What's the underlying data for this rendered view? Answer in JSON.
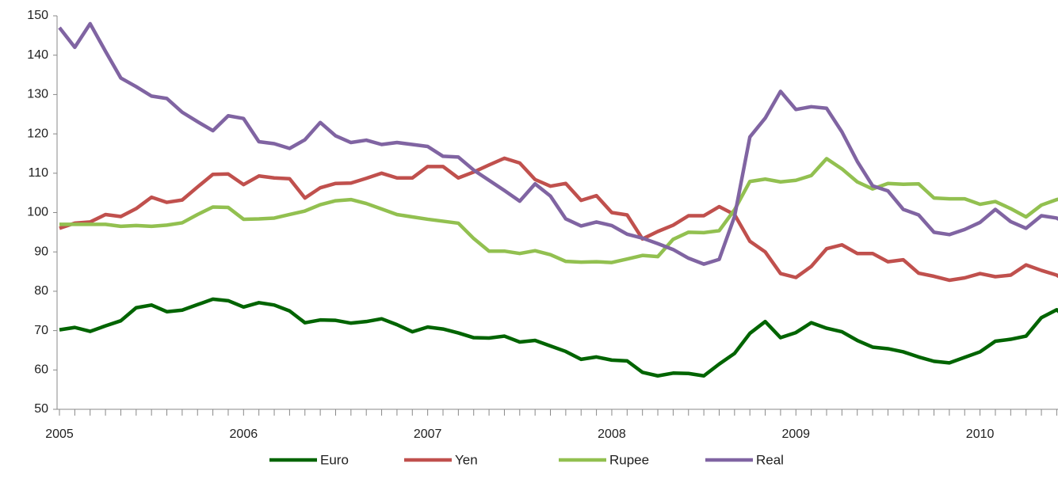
{
  "chart_data": {
    "type": "line",
    "categories": [
      "2005",
      null,
      null,
      null,
      null,
      null,
      null,
      null,
      null,
      null,
      null,
      null,
      "2006",
      null,
      null,
      null,
      null,
      null,
      null,
      null,
      null,
      null,
      null,
      null,
      "2007",
      null,
      null,
      null,
      null,
      null,
      null,
      null,
      null,
      null,
      null,
      null,
      "2008",
      null,
      null,
      null,
      null,
      null,
      null,
      null,
      null,
      null,
      null,
      null,
      "2009",
      null,
      null,
      null,
      null,
      null,
      null,
      null,
      null,
      null,
      null,
      null,
      "2010",
      null,
      null,
      null,
      null,
      null,
      null
    ],
    "series": [
      {
        "name": "Euro",
        "color": "#006400",
        "values": [
          70.2,
          70.8,
          69.8,
          71.2,
          72.5,
          75.8,
          76.5,
          74.8,
          75.2,
          76.6,
          78,
          77.6,
          76,
          77.1,
          76.5,
          75,
          72,
          72.7,
          72.6,
          71.9,
          72.3,
          73,
          71.5,
          69.7,
          70.9,
          70.4,
          69.4,
          68.2,
          68.1,
          68.6,
          67.1,
          67.5,
          66.1,
          64.7,
          62.7,
          63.3,
          62.5,
          62.3,
          59.4,
          58.5,
          59.2,
          59.1,
          58.5,
          61.5,
          64.2,
          69.3,
          72.3,
          68.2,
          69.5,
          72,
          70.6,
          69.7,
          67.5,
          65.8,
          65.4,
          64.6,
          63.3,
          62.2,
          61.8,
          63.2,
          64.6,
          67.3,
          67.8,
          68.6,
          73.3,
          75.3,
          72
        ]
      },
      {
        "name": "Yen",
        "color": "#c0504d",
        "values": [
          96,
          97.3,
          97.6,
          99.5,
          99,
          101,
          103.9,
          102.6,
          103.2,
          106.5,
          109.7,
          109.8,
          107.1,
          109.3,
          108.8,
          108.6,
          103.7,
          106.3,
          107.4,
          107.5,
          108.7,
          110,
          108.8,
          108.8,
          111.7,
          111.7,
          108.8,
          110.3,
          112.1,
          113.8,
          112.6,
          108.4,
          106.7,
          107.4,
          103.1,
          104.3,
          100,
          99.4,
          93.3,
          95.2,
          96.8,
          99.2,
          99.2,
          101.5,
          99.5,
          92.7,
          90,
          84.5,
          83.5,
          86.3,
          90.8,
          91.8,
          89.6,
          89.6,
          87.5,
          88,
          84.6,
          83.8,
          82.8,
          83.4,
          84.5,
          83.7,
          84.1,
          86.7,
          85.3,
          84.1,
          81.5
        ]
      },
      {
        "name": "Rupee",
        "color": "#92c050",
        "values": [
          97,
          97,
          97,
          97,
          96.5,
          96.7,
          96.5,
          96.8,
          97.4,
          99.5,
          101.4,
          101.3,
          98.3,
          98.4,
          98.6,
          99.5,
          100.4,
          102,
          103,
          103.3,
          102.3,
          100.9,
          99.5,
          98.9,
          98.3,
          97.8,
          97.3,
          93.4,
          90.2,
          90.2,
          89.6,
          90.3,
          89.3,
          87.6,
          87.4,
          87.5,
          87.3,
          88.2,
          89.1,
          88.8,
          93.2,
          95,
          94.9,
          95.4,
          100.7,
          107.9,
          108.5,
          107.8,
          108.2,
          109.4,
          113.7,
          111.1,
          107.8,
          106,
          107.4,
          107.2,
          107.3,
          103.7,
          103.5,
          103.5,
          102.1,
          102.8,
          101,
          98.9,
          101.9,
          103.3,
          104
        ]
      },
      {
        "name": "Real",
        "color": "#8064a2",
        "values": [
          147,
          142,
          148,
          141,
          134.2,
          132,
          129.6,
          129,
          125.5,
          123.1,
          120.8,
          124.6,
          123.9,
          118,
          117.5,
          116.3,
          118.5,
          122.9,
          119.5,
          117.8,
          118.4,
          117.3,
          117.8,
          117.3,
          116.8,
          114.3,
          114.1,
          110.8,
          108.2,
          105.6,
          102.9,
          107.3,
          104.2,
          98.4,
          96.6,
          97.6,
          96.7,
          94.5,
          93.5,
          92.1,
          90.6,
          88.4,
          86.9,
          88.1,
          99,
          119.2,
          124,
          130.8,
          126.2,
          126.9,
          126.5,
          120.5,
          113,
          106.8,
          105.5,
          100.8,
          99.4,
          95,
          94.4,
          95.7,
          97.5,
          100.8,
          97.7,
          96,
          99.2,
          98.6,
          96.5
        ]
      }
    ],
    "ylim": [
      50,
      150
    ],
    "yticks": [
      50,
      60,
      70,
      80,
      90,
      100,
      110,
      120,
      130,
      140,
      150
    ],
    "legend": "bottom"
  }
}
